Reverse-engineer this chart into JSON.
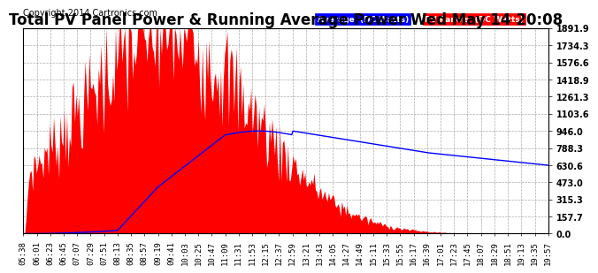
{
  "title": "Total PV Panel Power & Running Average Power Wed May 14 20:08",
  "copyright": "Copyright 2014 Cartronics.com",
  "legend_average": "Average  (DC Watts)",
  "legend_pv": "PV Panels  (DC Watts)",
  "ymax": 1891.9,
  "yticks": [
    0.0,
    157.7,
    315.3,
    473.0,
    630.6,
    788.3,
    946.0,
    1103.6,
    1261.3,
    1418.9,
    1576.6,
    1734.3,
    1891.9
  ],
  "background_color": "#ffffff",
  "fill_color": "#ff0000",
  "line_color": "#0000ff",
  "grid_color": "#aaaaaa",
  "title_fontsize": 12,
  "copyright_fontsize": 7,
  "tick_fontsize": 6.5,
  "ytick_fontsize": 7
}
